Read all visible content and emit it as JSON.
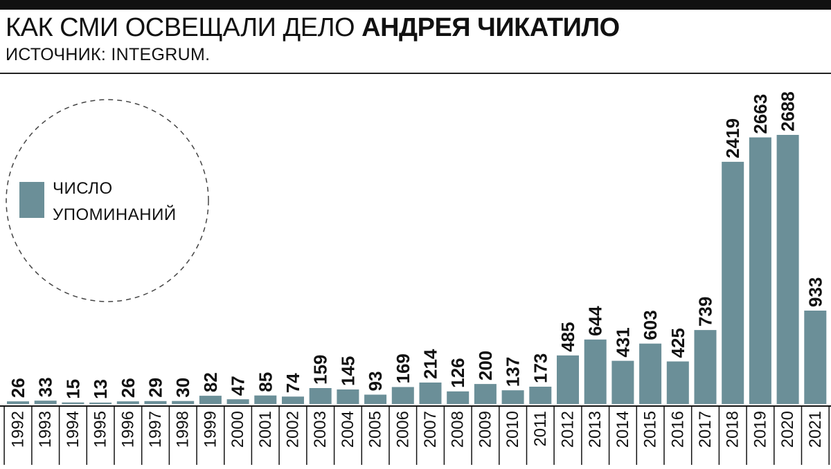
{
  "header": {
    "title_regular": "КАК СМИ ОСВЕЩАЛИ ДЕЛО ",
    "title_bold": "АНДРЕЯ ЧИКАТИЛО",
    "subtitle": "ИСТОЧНИК: INTEGRUM."
  },
  "colors": {
    "bar": "#6b8f98",
    "text": "#111111",
    "background": "#ffffff"
  },
  "chart_data": {
    "type": "bar",
    "title": "КАК СМИ ОСВЕЩАЛИ ДЕЛО АНДРЕЯ ЧИКАТИЛО",
    "subtitle": "ИСТОЧНИК: INTEGRUM.",
    "xlabel": "",
    "ylabel": "",
    "ylim": [
      0,
      2700
    ],
    "grid": false,
    "legend_position": "left",
    "legend_lines": [
      "ЧИСЛО",
      "УПОМИНАНИЙ"
    ],
    "categories": [
      "1992",
      "1993",
      "1994",
      "1995",
      "1996",
      "1997",
      "1998",
      "1999",
      "2000",
      "2001",
      "2002",
      "2003",
      "2004",
      "2005",
      "2006",
      "2007",
      "2008",
      "2009",
      "2010",
      "2011",
      "2012",
      "2013",
      "2014",
      "2015",
      "2016",
      "2017",
      "2018",
      "2019",
      "2020",
      "2021"
    ],
    "series": [
      {
        "name": "ЧИСЛО УПОМИНАНИЙ",
        "values": [
          26,
          33,
          15,
          13,
          26,
          29,
          30,
          82,
          47,
          85,
          74,
          159,
          145,
          93,
          169,
          214,
          126,
          200,
          137,
          173,
          485,
          644,
          431,
          603,
          425,
          739,
          2419,
          2663,
          2688,
          933
        ]
      }
    ]
  }
}
